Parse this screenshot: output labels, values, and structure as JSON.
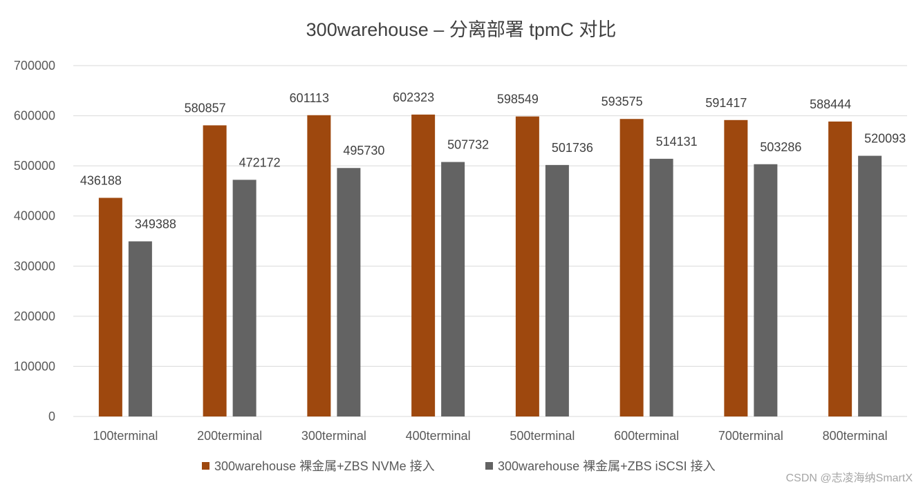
{
  "chart_data": {
    "type": "bar",
    "title": "300warehouse – 分离部署 tpmC 对比",
    "categories": [
      "100terminal",
      "200terminal",
      "300terminal",
      "400terminal",
      "500terminal",
      "600terminal",
      "700terminal",
      "800terminal"
    ],
    "series": [
      {
        "name": "300warehouse 裸金属+ZBS NVMe 接入",
        "color": "#9e480e",
        "values": [
          436188,
          580857,
          601113,
          602323,
          598549,
          593575,
          591417,
          588444
        ]
      },
      {
        "name": "300warehouse 裸金属+ZBS iSCSI 接入",
        "color": "#636363",
        "values": [
          349388,
          472172,
          495730,
          507732,
          501736,
          514131,
          503286,
          520093
        ]
      }
    ],
    "ylim": [
      0,
      700000
    ],
    "yticks": [
      0,
      100000,
      200000,
      300000,
      400000,
      500000,
      600000,
      700000
    ],
    "grid": true,
    "legend_position": "bottom",
    "xlabel": "",
    "ylabel": ""
  },
  "watermark": "CSDN @志凌海纳SmartX"
}
